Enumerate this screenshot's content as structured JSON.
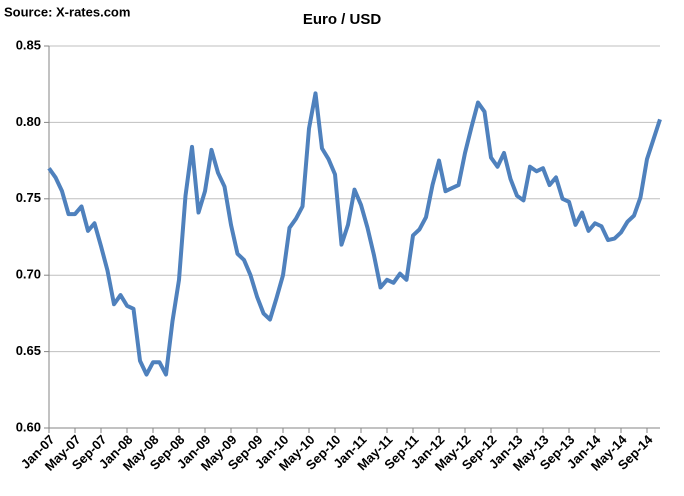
{
  "chart_data": {
    "type": "line",
    "title": "Euro / USD",
    "annotations": [
      "Source: X-rates.com"
    ],
    "categories": [
      "Jan-07",
      null,
      null,
      null,
      "May-07",
      null,
      null,
      null,
      "Sep-07",
      null,
      null,
      null,
      "Jan-08",
      null,
      null,
      null,
      "May-08",
      null,
      null,
      null,
      "Sep-08",
      null,
      null,
      null,
      "Jan-09",
      null,
      null,
      null,
      "May-09",
      null,
      null,
      null,
      "Sep-09",
      null,
      null,
      null,
      "Jan-10",
      null,
      null,
      null,
      "May-10",
      null,
      null,
      null,
      "Sep-10",
      null,
      null,
      null,
      "Jan-11",
      null,
      null,
      null,
      "May-11",
      null,
      null,
      null,
      "Sep-11",
      null,
      null,
      null,
      "Jan-12",
      null,
      null,
      null,
      "May-12",
      null,
      null,
      null,
      "Sep-12",
      null,
      null,
      null,
      "Jan-13",
      null,
      null,
      null,
      "May-13",
      null,
      null,
      null,
      "Sep-13",
      null,
      null,
      null,
      "Jan-14",
      null,
      null,
      null,
      "May-14",
      null,
      null,
      null,
      "Sep-14",
      null,
      null
    ],
    "series": [
      {
        "name": "Euro / USD",
        "color": "#4f81bd",
        "values": [
          0.77,
          0.764,
          0.755,
          0.74,
          0.74,
          0.745,
          0.729,
          0.734,
          0.719,
          0.703,
          0.681,
          0.687,
          0.68,
          0.678,
          0.644,
          0.635,
          0.643,
          0.643,
          0.635,
          0.67,
          0.697,
          0.752,
          0.784,
          0.741,
          0.755,
          0.782,
          0.767,
          0.758,
          0.733,
          0.714,
          0.71,
          0.7,
          0.686,
          0.675,
          0.671,
          0.685,
          0.7,
          0.731,
          0.737,
          0.745,
          0.796,
          0.819,
          0.783,
          0.776,
          0.766,
          0.72,
          0.733,
          0.756,
          0.746,
          0.731,
          0.713,
          0.692,
          0.697,
          0.695,
          0.701,
          0.697,
          0.726,
          0.73,
          0.738,
          0.759,
          0.775,
          0.755,
          0.757,
          0.759,
          0.78,
          0.797,
          0.813,
          0.807,
          0.777,
          0.771,
          0.78,
          0.763,
          0.752,
          0.749,
          0.771,
          0.768,
          0.77,
          0.759,
          0.764,
          0.75,
          0.748,
          0.733,
          0.741,
          0.729,
          0.734,
          0.732,
          0.723,
          0.724,
          0.728,
          0.735,
          0.739,
          0.751,
          0.776,
          0.789,
          0.802
        ]
      }
    ],
    "ylim": [
      0.6,
      0.85
    ],
    "yticks": [
      {
        "value": 0.6,
        "label": "0.60"
      },
      0.65,
      {
        "value": 0.7,
        "label": "0.70"
      },
      0.75,
      {
        "value": 0.8,
        "label": "0.80"
      },
      0.85
    ],
    "grid": true
  }
}
